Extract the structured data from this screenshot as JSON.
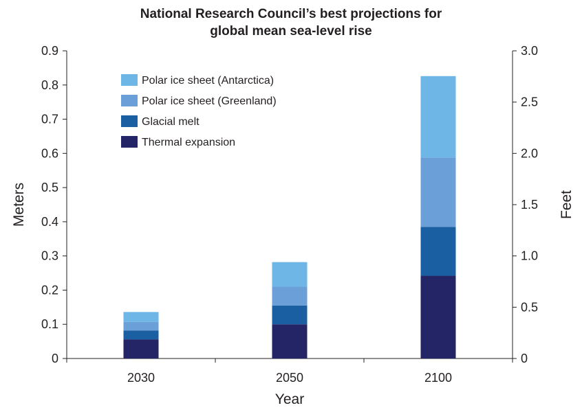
{
  "chart_data": {
    "type": "bar",
    "stacked": true,
    "title_lines": [
      "National Research Council’s best projections for",
      "global mean sea-level rise"
    ],
    "xlabel": "Year",
    "ylabel": "Meters",
    "y2label": "Feet",
    "categories": [
      "2030",
      "2050",
      "2100"
    ],
    "ylim": [
      0,
      0.9
    ],
    "y_ticks": [
      0,
      0.1,
      0.2,
      0.3,
      0.4,
      0.5,
      0.6,
      0.7,
      0.8,
      0.9
    ],
    "y_tick_labels": [
      "0",
      "0.1",
      "0.2",
      "0.3",
      "0.4",
      "0.5",
      "0.6",
      "0.7",
      "0.8",
      "0.9"
    ],
    "y2lim": [
      0,
      3.0
    ],
    "y2_ticks": [
      0,
      0.5,
      1.0,
      1.5,
      2.0,
      2.5,
      3.0
    ],
    "y2_tick_labels": [
      "0",
      "0.5",
      "1.0",
      "1.5",
      "2.0",
      "2.5",
      "3.0"
    ],
    "series": [
      {
        "name": "Thermal expansion",
        "color": "#232566",
        "values": [
          0.056,
          0.1,
          0.242
        ]
      },
      {
        "name": "Glacial melt",
        "color": "#1b5fa3",
        "values": [
          0.026,
          0.055,
          0.143
        ]
      },
      {
        "name": "Polar ice sheet (Greenland)",
        "color": "#6a9fd7",
        "values": [
          0.025,
          0.055,
          0.203
        ]
      },
      {
        "name": "Polar ice sheet (Antarctica)",
        "color": "#6db6e6",
        "values": [
          0.029,
          0.072,
          0.238
        ]
      }
    ],
    "legend_order": [
      3,
      2,
      1,
      0
    ],
    "legend_position": "top-left",
    "grid": false
  }
}
